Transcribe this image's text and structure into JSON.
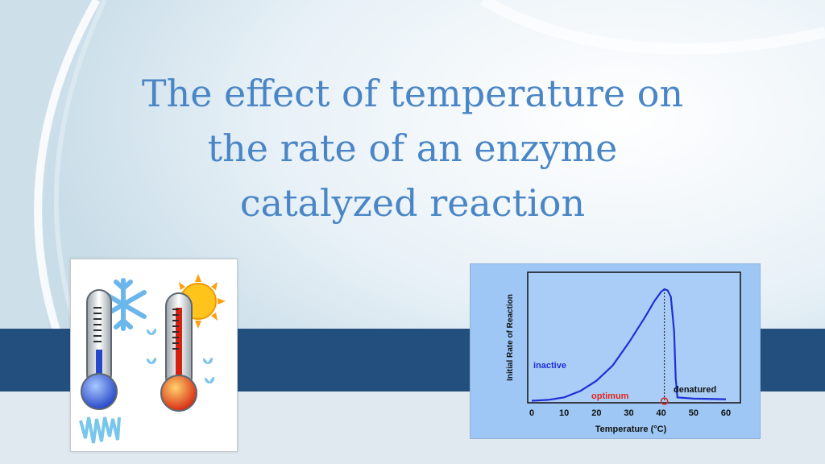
{
  "slide": {
    "title_lines": [
      "The effect of temperature on",
      "the rate of an enzyme",
      "catalyzed reaction"
    ]
  },
  "images": {
    "thermometers": {
      "cold_icon": "thermometer-cold-snowflake-icon",
      "hot_icon": "thermometer-hot-sun-icon"
    }
  },
  "colors": {
    "title": "#4a86c6",
    "band": "#234f7f",
    "chart_background": "#9ec7f5",
    "curve": "#1f2fd6",
    "optimum_label": "#e0261d"
  },
  "chart_data": {
    "type": "line",
    "xlabel": "Temperature (°C)",
    "ylabel": "Initial Rate of Reaction",
    "xlim": [
      0,
      60
    ],
    "x_ticks": [
      0,
      10,
      20,
      30,
      40,
      50,
      60
    ],
    "series": [
      {
        "points": [
          [
            0,
            0.3
          ],
          [
            5,
            1
          ],
          [
            10,
            3
          ],
          [
            15,
            8
          ],
          [
            20,
            16
          ],
          [
            25,
            28
          ],
          [
            30,
            46
          ],
          [
            35,
            66
          ],
          [
            38,
            79
          ],
          [
            40,
            86
          ],
          [
            41,
            88
          ],
          [
            42,
            87
          ],
          [
            43,
            82
          ],
          [
            44,
            55
          ],
          [
            44.5,
            18
          ],
          [
            45,
            3
          ],
          [
            50,
            2
          ],
          [
            60,
            1.5
          ]
        ]
      }
    ],
    "ylim": [
      0,
      100
    ],
    "optimum_x": 41,
    "annotations": {
      "inactive": "inactive",
      "optimum": "optimum",
      "denatured": "denatured"
    },
    "grid": false
  }
}
